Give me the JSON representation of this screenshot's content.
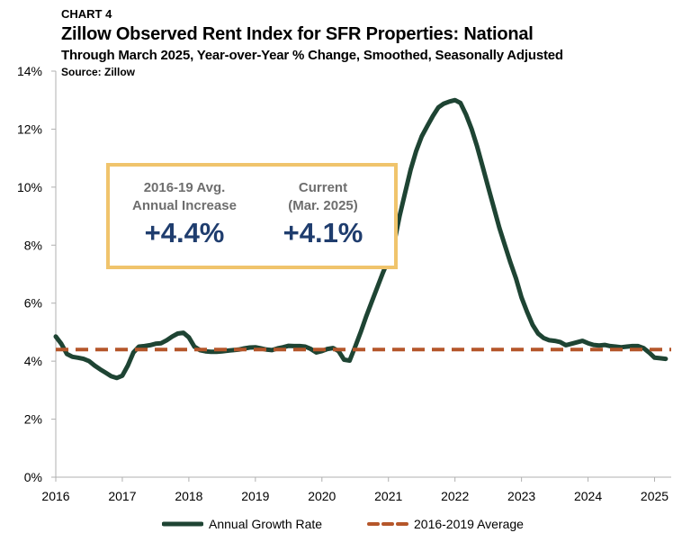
{
  "header": {
    "label": "CHART 4",
    "title": "Zillow Observed Rent Index for SFR Properties: National",
    "subtitle": "Through March 2025, Year-over-Year % Change, Smoothed, Seasonally Adjusted",
    "source": "Source: Zillow"
  },
  "callout": {
    "left_label_line1": "2016-19 Avg.",
    "left_label_line2": "Annual Increase",
    "left_value": "+4.4%",
    "right_label_line1": "Current",
    "right_label_line2": "(Mar. 2025)",
    "right_value": "+4.1%"
  },
  "legend": {
    "series1": "Annual Growth Rate",
    "series2": "2016-2019 Average"
  },
  "colors": {
    "growth_line": "#1e4433",
    "average_line": "#b5562a",
    "callout_border": "#f0c46c",
    "callout_value": "#1f3d6e",
    "callout_label": "#6e6e6e",
    "axis": "#b0b0b0"
  },
  "chart_data": {
    "type": "line",
    "title": "Zillow Observed Rent Index for SFR Properties: National",
    "xlabel": "",
    "ylabel": "",
    "xlim": [
      2016,
      2025.25
    ],
    "ylim": [
      0,
      14
    ],
    "x_ticks": [
      2016,
      2017,
      2018,
      2019,
      2020,
      2021,
      2022,
      2023,
      2024,
      2025
    ],
    "y_ticks": [
      0,
      2,
      4,
      6,
      8,
      10,
      12,
      14
    ],
    "y_tick_labels": [
      "0%",
      "2%",
      "4%",
      "6%",
      "8%",
      "10%",
      "12%",
      "14%"
    ],
    "grid": false,
    "legend_position": "bottom",
    "series": [
      {
        "name": "Annual Growth Rate",
        "style": "solid",
        "x": [
          2016.0,
          2016.083,
          2016.167,
          2016.25,
          2016.333,
          2016.417,
          2016.5,
          2016.583,
          2016.667,
          2016.75,
          2016.833,
          2016.917,
          2017.0,
          2017.083,
          2017.167,
          2017.25,
          2017.333,
          2017.417,
          2017.5,
          2017.583,
          2017.667,
          2017.75,
          2017.833,
          2017.917,
          2018.0,
          2018.083,
          2018.167,
          2018.25,
          2018.333,
          2018.417,
          2018.5,
          2018.583,
          2018.667,
          2018.75,
          2018.833,
          2018.917,
          2019.0,
          2019.083,
          2019.167,
          2019.25,
          2019.333,
          2019.417,
          2019.5,
          2019.583,
          2019.667,
          2019.75,
          2019.833,
          2019.917,
          2020.0,
          2020.083,
          2020.167,
          2020.25,
          2020.333,
          2020.417,
          2020.5,
          2020.583,
          2020.667,
          2020.75,
          2020.833,
          2020.917,
          2021.0,
          2021.083,
          2021.167,
          2021.25,
          2021.333,
          2021.417,
          2021.5,
          2021.583,
          2021.667,
          2021.75,
          2021.833,
          2021.917,
          2022.0,
          2022.083,
          2022.167,
          2022.25,
          2022.333,
          2022.417,
          2022.5,
          2022.583,
          2022.667,
          2022.75,
          2022.833,
          2022.917,
          2023.0,
          2023.083,
          2023.167,
          2023.25,
          2023.333,
          2023.417,
          2023.5,
          2023.583,
          2023.667,
          2023.75,
          2023.833,
          2023.917,
          2024.0,
          2024.083,
          2024.167,
          2024.25,
          2024.333,
          2024.417,
          2024.5,
          2024.583,
          2024.667,
          2024.75,
          2024.833,
          2024.917,
          2025.0,
          2025.083,
          2025.167
        ],
        "values": [
          4.85,
          4.6,
          4.25,
          4.15,
          4.12,
          4.08,
          4.0,
          3.85,
          3.72,
          3.6,
          3.48,
          3.42,
          3.5,
          3.85,
          4.3,
          4.5,
          4.52,
          4.55,
          4.6,
          4.62,
          4.72,
          4.85,
          4.95,
          4.98,
          4.82,
          4.5,
          4.38,
          4.34,
          4.32,
          4.32,
          4.34,
          4.36,
          4.38,
          4.4,
          4.44,
          4.47,
          4.48,
          4.44,
          4.4,
          4.38,
          4.44,
          4.48,
          4.53,
          4.52,
          4.52,
          4.5,
          4.42,
          4.3,
          4.35,
          4.42,
          4.45,
          4.35,
          4.05,
          4.02,
          4.5,
          5.0,
          5.55,
          6.05,
          6.55,
          7.05,
          7.5,
          8.05,
          9.0,
          9.8,
          10.6,
          11.25,
          11.75,
          12.1,
          12.45,
          12.75,
          12.88,
          12.95,
          13.0,
          12.9,
          12.5,
          12.0,
          11.4,
          10.7,
          10.0,
          9.3,
          8.6,
          8.0,
          7.4,
          6.85,
          6.2,
          5.7,
          5.25,
          4.95,
          4.8,
          4.72,
          4.7,
          4.66,
          4.55,
          4.6,
          4.65,
          4.7,
          4.62,
          4.56,
          4.54,
          4.56,
          4.52,
          4.5,
          4.48,
          4.5,
          4.52,
          4.52,
          4.45,
          4.3,
          4.12,
          4.1,
          4.08
        ]
      },
      {
        "name": "2016-2019 Average",
        "style": "dashed",
        "x": [
          2016.0,
          2025.25
        ],
        "values": [
          4.4,
          4.4
        ]
      }
    ]
  }
}
